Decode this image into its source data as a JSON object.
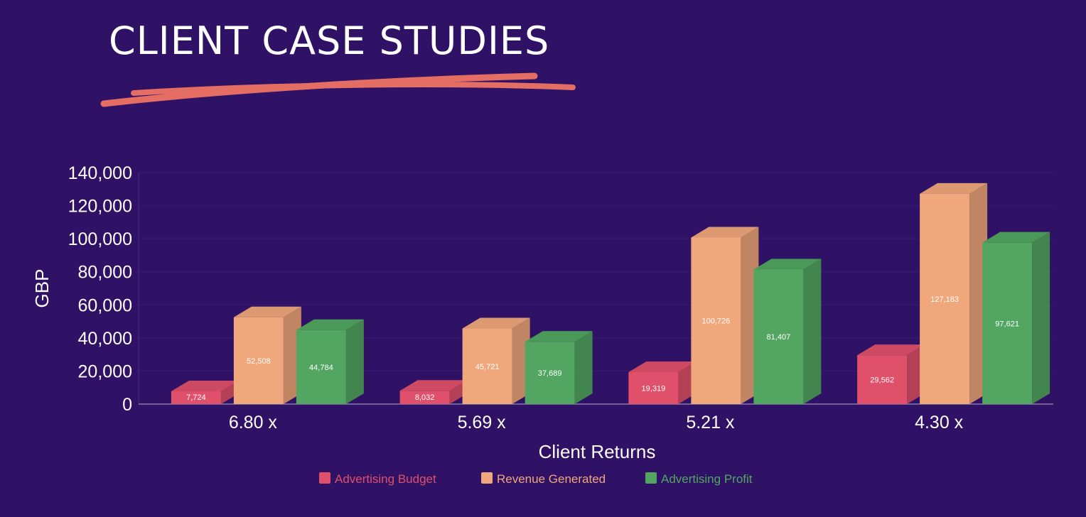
{
  "page": {
    "title": "CLIENT CASE STUDIES",
    "background": "#2f1166",
    "accent": "#e46e63"
  },
  "chart_data": {
    "type": "bar",
    "title": "",
    "xlabel": "Client Returns",
    "ylabel": "GBP",
    "categories": [
      "6.80 x",
      "5.69 x",
      "5.21 x",
      "4.30 x"
    ],
    "ylim": [
      0,
      140000
    ],
    "yticks": [
      {
        "value": 0,
        "label": "0"
      },
      {
        "value": 20000,
        "label": "20,000"
      },
      {
        "value": 40000,
        "label": "40,000"
      },
      {
        "value": 60000,
        "label": "60,000"
      },
      {
        "value": 80000,
        "label": "80,000"
      },
      {
        "value": 100000,
        "label": "100,000"
      },
      {
        "value": 120000,
        "label": "120,000"
      },
      {
        "value": 140000,
        "label": "140,000"
      }
    ],
    "grid": true,
    "legend_position": "bottom",
    "series": [
      {
        "name": "Advertising Budget",
        "color": "#e0506a",
        "values": [
          7724,
          8032,
          19319,
          29562
        ],
        "labels": [
          "7,724",
          "8,032",
          "19,319",
          "29,562"
        ]
      },
      {
        "name": "Revenue Generated",
        "color": "#f0a77c",
        "values": [
          52508,
          45721,
          100726,
          127183
        ],
        "labels": [
          "52,508",
          "45,721",
          "100,726",
          "127,183"
        ]
      },
      {
        "name": "Advertising Profit",
        "color": "#52a661",
        "values": [
          44784,
          37689,
          81407,
          97621
        ],
        "labels": [
          "44,784",
          "37,689",
          "81,407",
          "97,621"
        ]
      }
    ]
  }
}
